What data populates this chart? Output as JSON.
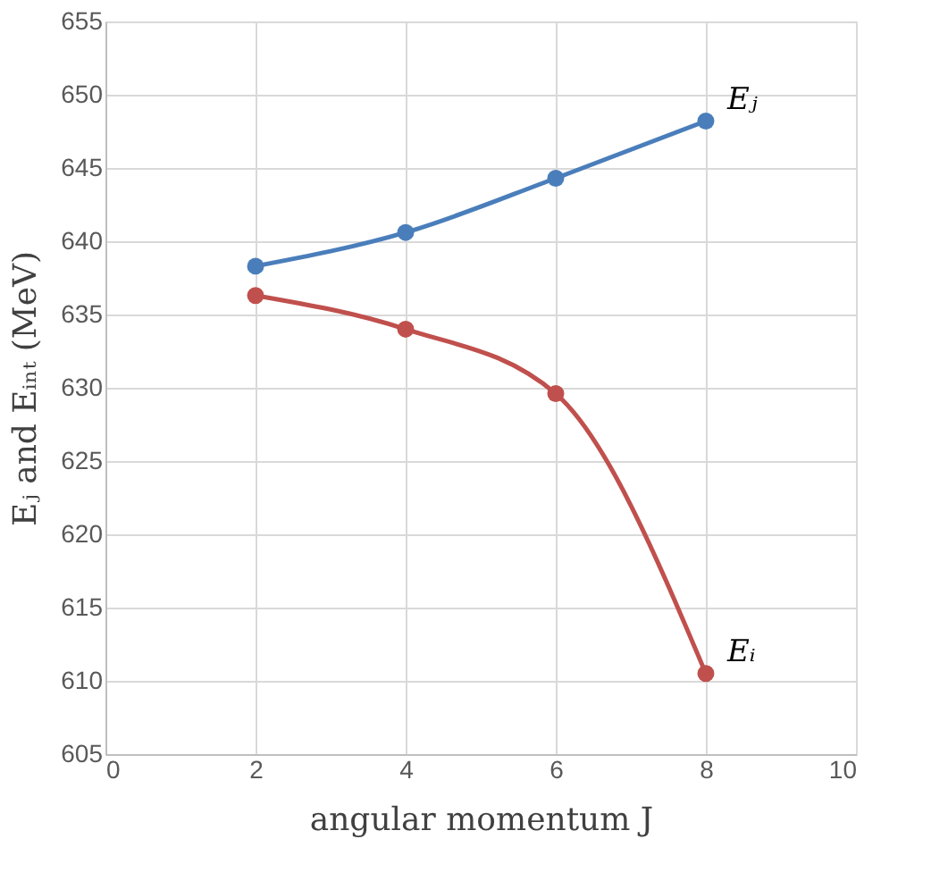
{
  "chart_data": {
    "type": "line",
    "xlabel": "angular momentum J",
    "ylabel": "Eⱼ and Eᵢₙₜ (MeV)",
    "x": [
      2,
      4,
      6,
      8
    ],
    "series": [
      {
        "name": "Eⱼ",
        "color": "#4a7ebb",
        "values": [
          638.3,
          640.6,
          644.3,
          648.2
        ]
      },
      {
        "name": "Eᵢ",
        "color": "#c0504d",
        "values": [
          636.3,
          634.0,
          629.6,
          610.5
        ]
      }
    ],
    "xlim": [
      0,
      10
    ],
    "xticks": [
      0,
      2,
      4,
      6,
      8,
      10
    ],
    "ylim": [
      605,
      655
    ],
    "yticks": [
      605,
      610,
      615,
      620,
      625,
      630,
      635,
      640,
      645,
      650,
      655
    ],
    "grid": true,
    "marker": "circle",
    "line_style": "solid"
  }
}
